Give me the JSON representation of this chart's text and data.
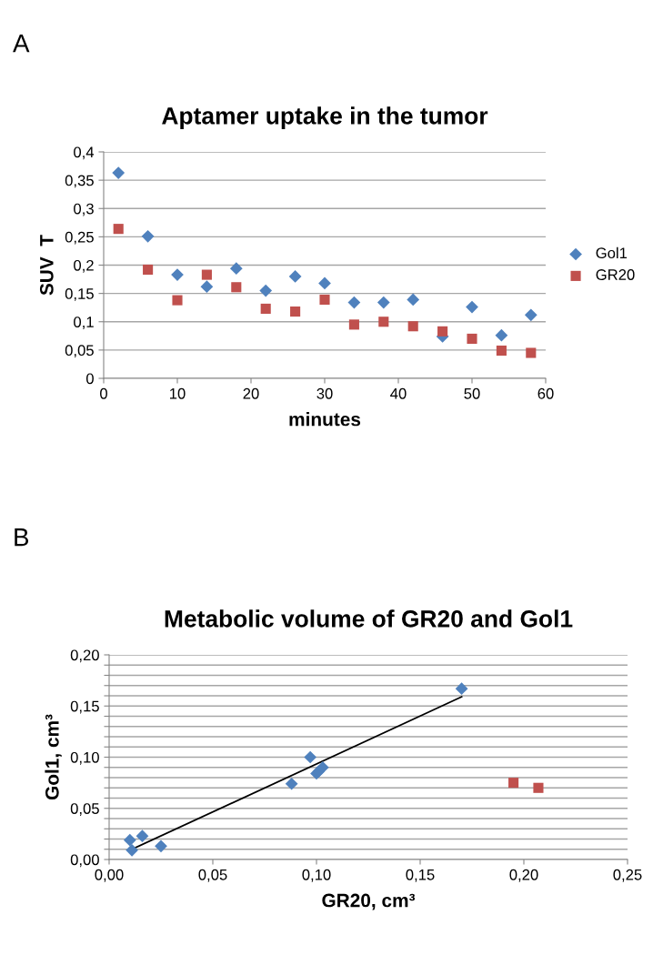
{
  "chart_data": [
    {
      "type": "scatter",
      "title": "Aptamer uptake in the tumor",
      "xlabel": "minutes",
      "ylabel": "SUV  T",
      "annotations": [
        "A"
      ],
      "x": [
        2,
        6,
        10,
        14,
        18,
        22,
        26,
        30,
        34,
        38,
        42,
        46,
        50,
        54,
        58
      ],
      "series": [
        {
          "name": "Gol1",
          "color": "#4f81bd",
          "marker": "diamond",
          "values": [
            0.363,
            0.251,
            0.183,
            0.162,
            0.194,
            0.155,
            0.18,
            0.168,
            0.134,
            0.134,
            0.139,
            0.074,
            0.126,
            0.076,
            0.112
          ]
        },
        {
          "name": "GR20",
          "color": "#c0504d",
          "marker": "square",
          "values": [
            0.264,
            0.192,
            0.138,
            0.183,
            0.161,
            0.123,
            0.118,
            0.139,
            0.095,
            0.1,
            0.092,
            0.083,
            0.07,
            0.049,
            0.045
          ]
        }
      ],
      "xlim": [
        0,
        60
      ],
      "xticks": [
        0,
        10,
        20,
        30,
        40,
        50,
        60
      ],
      "ylim": [
        0,
        0.4
      ],
      "yticks": [
        {
          "value": 0,
          "label": "0"
        },
        {
          "value": 0.05,
          "label": "0,05"
        },
        {
          "value": 0.1,
          "label": "0,1"
        },
        {
          "value": 0.15,
          "label": "0,15"
        },
        {
          "value": 0.2,
          "label": "0,2"
        },
        {
          "value": 0.25,
          "label": "0,25"
        },
        {
          "value": 0.3,
          "label": "0,3"
        },
        {
          "value": 0.35,
          "label": "0,35"
        },
        {
          "value": 0.4,
          "label": "0,4"
        }
      ],
      "grid": "y",
      "legend": "right"
    },
    {
      "type": "scatter",
      "title": "Metabolic volume of GR20 and Gol1",
      "xlabel": "GR20, cm³",
      "ylabel": "Gol1, cm³",
      "annotations": [
        "B"
      ],
      "series": [
        {
          "color": "#4f81bd",
          "marker": "diamond",
          "x": [
            0.01,
            0.011,
            0.016,
            0.025,
            0.088,
            0.097,
            0.1,
            0.101,
            0.103,
            0.17
          ],
          "values": [
            0.019,
            0.009,
            0.023,
            0.013,
            0.074,
            0.1,
            0.084,
            0.086,
            0.09,
            0.167
          ]
        },
        {
          "color": "#c0504d",
          "marker": "square",
          "x": [
            0.195,
            0.207
          ],
          "values": [
            0.075,
            0.07
          ]
        },
        {
          "type": "line",
          "color": "#000000",
          "marker": "none",
          "x": [
            0.01,
            0.17
          ],
          "values": [
            0.009,
            0.159
          ]
        }
      ],
      "xlim": [
        0,
        0.25
      ],
      "xticks": [
        {
          "value": 0,
          "label": "0,00"
        },
        {
          "value": 0.05,
          "label": "0,05"
        },
        {
          "value": 0.1,
          "label": "0,10"
        },
        {
          "value": 0.15,
          "label": "0,15"
        },
        {
          "value": 0.2,
          "label": "0,20"
        },
        {
          "value": 0.25,
          "label": "0,25"
        }
      ],
      "ylim": [
        0,
        0.2
      ],
      "yticks": [
        {
          "value": 0,
          "label": "0,00"
        },
        {
          "value": 0.01,
          "label": null
        },
        {
          "value": 0.02,
          "label": null
        },
        {
          "value": 0.03,
          "label": null
        },
        {
          "value": 0.04,
          "label": null
        },
        {
          "value": 0.05,
          "label": "0,05"
        },
        {
          "value": 0.06,
          "label": null
        },
        {
          "value": 0.07,
          "label": null
        },
        {
          "value": 0.08,
          "label": null
        },
        {
          "value": 0.09,
          "label": null
        },
        {
          "value": 0.1,
          "label": "0,10"
        },
        {
          "value": 0.11,
          "label": null
        },
        {
          "value": 0.12,
          "label": null
        },
        {
          "value": 0.13,
          "label": null
        },
        {
          "value": 0.14,
          "label": null
        },
        {
          "value": 0.15,
          "label": "0,15"
        },
        {
          "value": 0.16,
          "label": null
        },
        {
          "value": 0.17,
          "label": null
        },
        {
          "value": 0.18,
          "label": null
        },
        {
          "value": 0.19,
          "label": null
        },
        {
          "value": 0.2,
          "label": "0,20"
        }
      ],
      "grid": "y"
    }
  ]
}
